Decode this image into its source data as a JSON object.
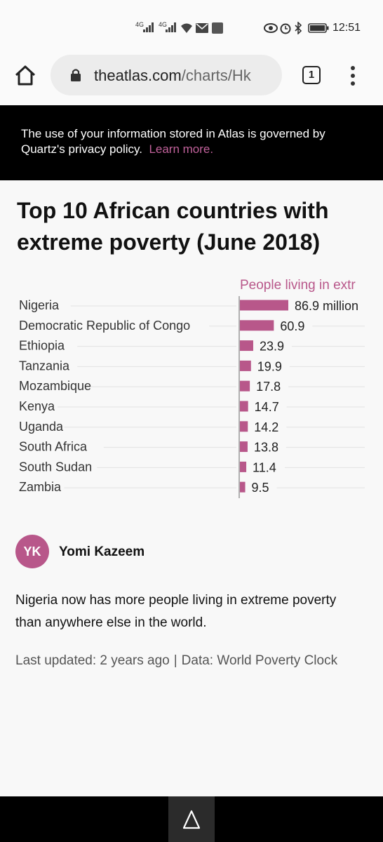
{
  "status_bar": {
    "net1": "4G",
    "net2": "4G",
    "time": "12:51"
  },
  "browser": {
    "url_domain": "theatlas.com",
    "url_path": "/charts/Hk",
    "tab_count": "1"
  },
  "privacy": {
    "text": "The use of your information stored in Atlas is governed by Quartz's privacy policy.",
    "link": "Learn more."
  },
  "chart_data": {
    "type": "bar",
    "orientation": "horizontal",
    "title": "Top 10 African countries with extreme poverty (June 2018)",
    "column_header": "People living in extr",
    "categories": [
      "Nigeria",
      "Democratic Republic of Congo",
      "Ethiopia",
      "Tanzania",
      "Mozambique",
      "Kenya",
      "Uganda",
      "South Africa",
      "South Sudan",
      "Zambia"
    ],
    "values": [
      86.9,
      60.9,
      23.9,
      19.9,
      17.8,
      14.7,
      14.2,
      13.8,
      11.4,
      9.5
    ],
    "value_labels": [
      "86.9 million",
      "60.9",
      "23.9",
      "19.9",
      "17.8",
      "14.7",
      "14.2",
      "13.8",
      "11.4",
      "9.5"
    ],
    "unit": "million",
    "bar_color": "#b8578a",
    "xlim": [
      0,
      86.9
    ]
  },
  "article": {
    "author_initials": "YK",
    "author_name": "Yomi Kazeem",
    "summary": "Nigeria now has more people living in extreme poverty than anywhere else in the world.",
    "last_updated": "Last updated: 2 years ago",
    "separator": "|",
    "data_source": "Data: World Poverty Clock"
  },
  "icons": {
    "home": "home-icon",
    "lock": "lock-icon",
    "menu": "kebab-menu-icon",
    "logo": "atlas-logo-icon"
  }
}
